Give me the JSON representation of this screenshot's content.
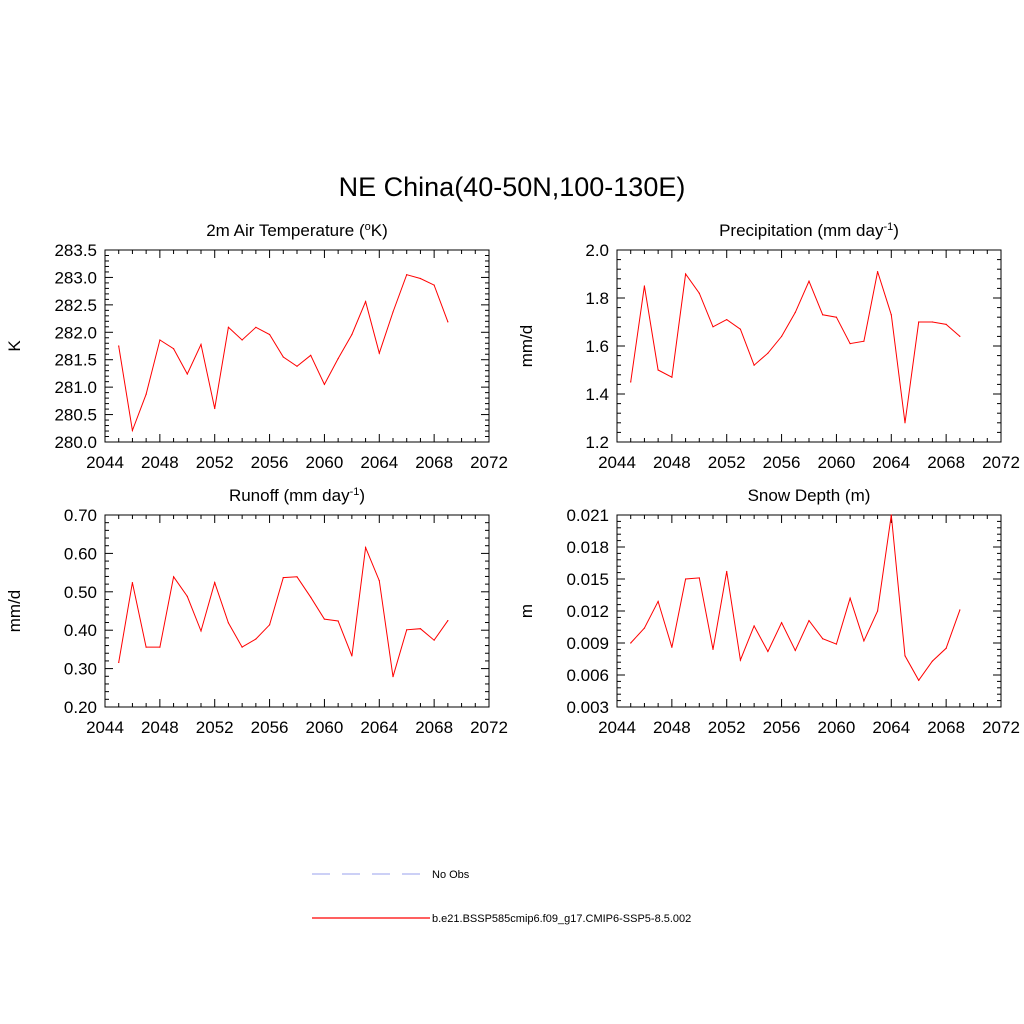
{
  "figure": {
    "title": "NE China(40-50N,100-130E)"
  },
  "chart_data": [
    {
      "type": "line",
      "title_main": "2m Air Temperature (",
      "title_sup": "o",
      "title_tail": "K)",
      "ylabel": "K",
      "xlim": [
        2044,
        2072
      ],
      "xticks": [
        2044,
        2048,
        2052,
        2056,
        2060,
        2064,
        2068,
        2072
      ],
      "ylim": [
        280.0,
        283.5
      ],
      "yticks": [
        "280.0",
        "280.5",
        "281.0",
        "281.5",
        "282.0",
        "282.5",
        "283.0",
        "283.5"
      ],
      "series": [
        {
          "name": "b.e21.BSSP585cmip6.f09_g17.CMIP6-SSP5-8.5.002",
          "x": [
            2045,
            2046,
            2047,
            2048,
            2049,
            2050,
            2051,
            2052,
            2053,
            2054,
            2055,
            2056,
            2057,
            2058,
            2059,
            2060,
            2061,
            2062,
            2063,
            2064,
            2065,
            2066,
            2067,
            2068,
            2069
          ],
          "y": [
            281.75,
            280.21,
            280.87,
            281.86,
            281.7,
            281.24,
            281.78,
            280.61,
            282.09,
            281.86,
            282.09,
            281.96,
            281.55,
            281.38,
            281.58,
            281.05,
            281.52,
            281.96,
            282.56,
            281.62,
            282.37,
            283.05,
            282.98,
            282.86,
            282.19
          ]
        }
      ]
    },
    {
      "type": "line",
      "title_main": "Precipitation (mm day",
      "title_sup": "-1",
      "title_tail": ")",
      "ylabel": "mm/d",
      "xlim": [
        2044,
        2072
      ],
      "xticks": [
        2044,
        2048,
        2052,
        2056,
        2060,
        2064,
        2068,
        2072
      ],
      "ylim": [
        1.2,
        2.0
      ],
      "yticks": [
        "1.2",
        "1.4",
        "1.6",
        "1.8",
        "2.0"
      ],
      "series": [
        {
          "name": "b.e21.BSSP585cmip6.f09_g17.CMIP6-SSP5-8.5.002",
          "x": [
            2045,
            2046,
            2047,
            2048,
            2049,
            2050,
            2051,
            2052,
            2053,
            2054,
            2055,
            2056,
            2057,
            2058,
            2059,
            2060,
            2061,
            2062,
            2063,
            2064,
            2065,
            2066,
            2067,
            2068,
            2069
          ],
          "y": [
            1.45,
            1.85,
            1.5,
            1.47,
            1.9,
            1.82,
            1.68,
            1.71,
            1.67,
            1.52,
            1.57,
            1.64,
            1.74,
            1.87,
            1.73,
            1.72,
            1.61,
            1.62,
            1.91,
            1.73,
            1.28,
            1.7,
            1.7,
            1.69,
            1.64
          ]
        }
      ]
    },
    {
      "type": "line",
      "title_main": "Runoff (mm day",
      "title_sup": "-1",
      "title_tail": ")",
      "ylabel": "mm/d",
      "xlim": [
        2044,
        2072
      ],
      "xticks": [
        2044,
        2048,
        2052,
        2056,
        2060,
        2064,
        2068,
        2072
      ],
      "ylim": [
        0.2,
        0.7
      ],
      "yticks": [
        "0.20",
        "0.30",
        "0.40",
        "0.50",
        "0.60",
        "0.70"
      ],
      "series": [
        {
          "name": "b.e21.BSSP585cmip6.f09_g17.CMIP6-SSP5-8.5.002",
          "x": [
            2045,
            2046,
            2047,
            2048,
            2049,
            2050,
            2051,
            2052,
            2053,
            2054,
            2055,
            2056,
            2057,
            2058,
            2059,
            2060,
            2061,
            2062,
            2063,
            2064,
            2065,
            2066,
            2067,
            2068,
            2069
          ],
          "y": [
            0.316,
            0.524,
            0.356,
            0.356,
            0.539,
            0.488,
            0.398,
            0.524,
            0.419,
            0.356,
            0.377,
            0.414,
            0.537,
            0.539,
            0.486,
            0.429,
            0.424,
            0.333,
            0.615,
            0.529,
            0.279,
            0.401,
            0.404,
            0.374,
            0.425
          ]
        }
      ]
    },
    {
      "type": "line",
      "title_main": "Snow Depth (m)",
      "title_sup": "",
      "title_tail": "",
      "ylabel": "m",
      "xlim": [
        2044,
        2072
      ],
      "xticks": [
        2044,
        2048,
        2052,
        2056,
        2060,
        2064,
        2068,
        2072
      ],
      "ylim": [
        0.003,
        0.021
      ],
      "yticks": [
        "0.003",
        "0.006",
        "0.009",
        "0.012",
        "0.015",
        "0.018",
        "0.021"
      ],
      "series": [
        {
          "name": "b.e21.BSSP585cmip6.f09_g17.CMIP6-SSP5-8.5.002",
          "x": [
            2045,
            2046,
            2047,
            2048,
            2049,
            2050,
            2051,
            2052,
            2053,
            2054,
            2055,
            2056,
            2057,
            2058,
            2059,
            2060,
            2061,
            2062,
            2063,
            2064,
            2065,
            2066,
            2067,
            2068,
            2069
          ],
          "y": [
            0.009,
            0.0104,
            0.0129,
            0.0086,
            0.015,
            0.0151,
            0.0084,
            0.0157,
            0.0074,
            0.0106,
            0.0082,
            0.0109,
            0.0083,
            0.0111,
            0.0094,
            0.0089,
            0.0132,
            0.0092,
            0.012,
            0.021,
            0.0078,
            0.0055,
            0.0073,
            0.0085,
            0.0121
          ]
        }
      ]
    }
  ],
  "legend": {
    "items": [
      {
        "label": "No Obs",
        "color": "#aeb4f0",
        "style": "dashed"
      },
      {
        "label": "b.e21.BSSP585cmip6.f09_g17.CMIP6-SSP5-8.5.002",
        "color": "#ff0000",
        "style": "solid"
      }
    ]
  },
  "colors": {
    "series": "#ff0000",
    "obs": "#aeb4f0",
    "axis": "#000000"
  }
}
